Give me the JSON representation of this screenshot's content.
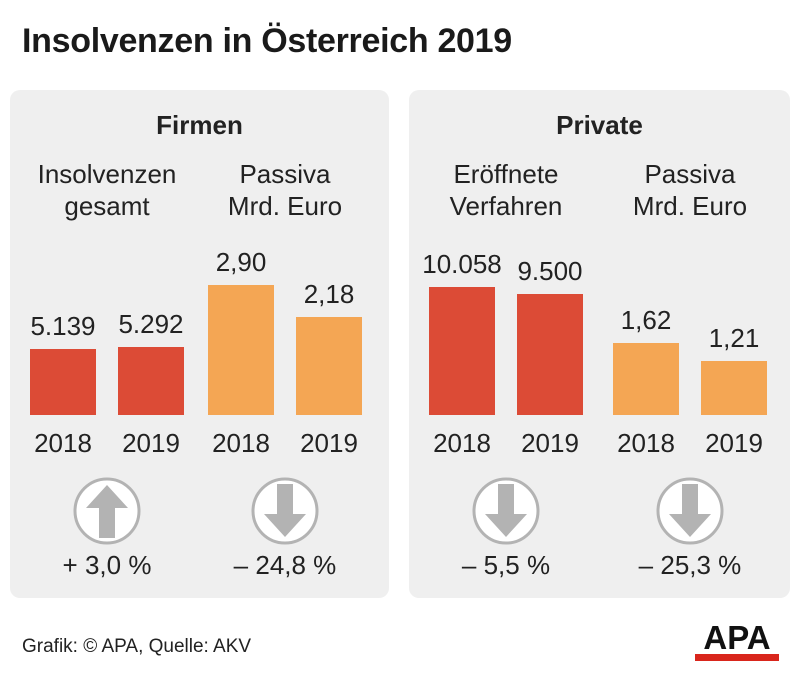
{
  "title": "Insolvenzen in Österreich 2019",
  "footer": "Grafik: © APA, Quelle: AKV",
  "logo_text": "APA",
  "colors": {
    "red": "#dc4b36",
    "orange": "#f4a654",
    "panel": "#efefef",
    "arrow": "#b3b3b3"
  },
  "chart_data": [
    {
      "type": "bar",
      "panel": "Firmen",
      "title_lines": [
        "Insolvenzen",
        "gesamt"
      ],
      "categories": [
        "2018",
        "2019"
      ],
      "values": [
        5139,
        5292
      ],
      "labels": [
        "5.139",
        "5.292"
      ],
      "color": "red",
      "change": "+ 3,0 %",
      "direction": "up"
    },
    {
      "type": "bar",
      "panel": "Firmen",
      "title_lines": [
        "Passiva",
        "Mrd. Euro"
      ],
      "categories": [
        "2018",
        "2019"
      ],
      "values": [
        2.9,
        2.18
      ],
      "labels": [
        "2,90",
        "2,18"
      ],
      "color": "orange",
      "change": "– 24,8 %",
      "direction": "down"
    },
    {
      "type": "bar",
      "panel": "Private",
      "title_lines": [
        "Eröffnete",
        "Verfahren"
      ],
      "categories": [
        "2018",
        "2019"
      ],
      "values": [
        10058,
        9500
      ],
      "labels": [
        "10.058",
        "9.500"
      ],
      "color": "red",
      "change": "– 5,5 %",
      "direction": "down"
    },
    {
      "type": "bar",
      "panel": "Private",
      "title_lines": [
        "Passiva",
        "Mrd. Euro"
      ],
      "categories": [
        "2018",
        "2019"
      ],
      "values": [
        1.62,
        1.21
      ],
      "labels": [
        "1,62",
        "1,21"
      ],
      "color": "orange",
      "change": "– 25,3 %",
      "direction": "down"
    }
  ],
  "panels": [
    "Firmen",
    "Private"
  ]
}
